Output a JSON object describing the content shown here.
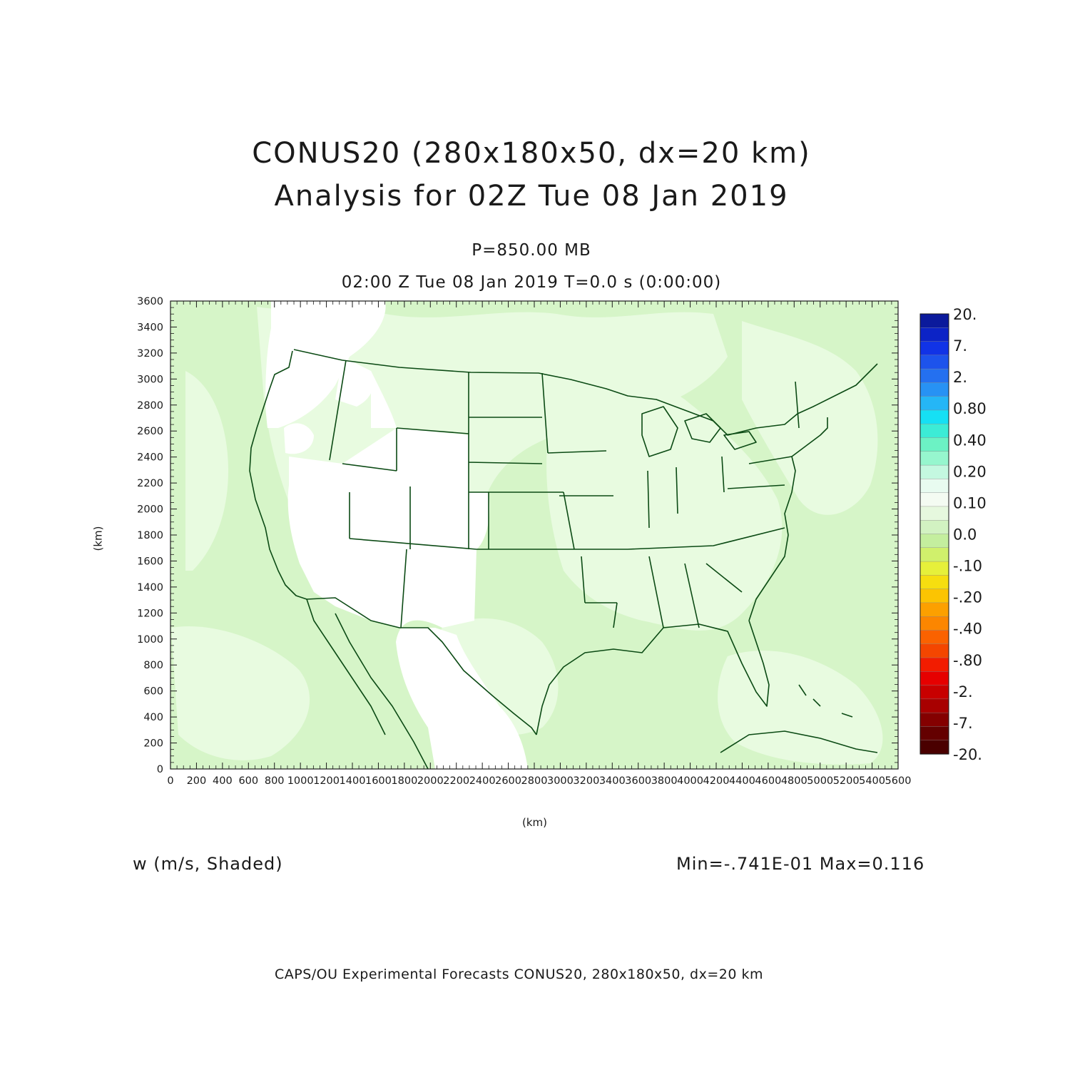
{
  "header": {
    "title_line1": "CONUS20 (280x180x50, dx=20 km)",
    "title_line2": "Analysis for 02Z Tue 08 Jan 2019",
    "level": "P=850.00 MB",
    "valid_time": "02:00 Z Tue 08 Jan 2019    T=0.0 s (0:00:00)"
  },
  "axes": {
    "x_label": "(km)",
    "y_label": "(km)",
    "x_ticks": [
      "0",
      "200",
      "400",
      "600",
      "800",
      "1000",
      "1200",
      "1400",
      "1600",
      "1800",
      "2000",
      "2200",
      "2400",
      "2600",
      "2800",
      "3000",
      "3200",
      "3400",
      "3600",
      "3800",
      "4000",
      "4200",
      "4400",
      "4600",
      "4800",
      "5000",
      "5200",
      "5400",
      "5600"
    ],
    "y_ticks": [
      "0",
      "200",
      "400",
      "600",
      "800",
      "1000",
      "1200",
      "1400",
      "1600",
      "1800",
      "2000",
      "2200",
      "2400",
      "2600",
      "2800",
      "3000",
      "3200",
      "3400",
      "3600"
    ],
    "x_range_km": [
      0,
      5600
    ],
    "y_range_km": [
      0,
      3600
    ]
  },
  "colorbar": {
    "labels_top_to_bottom": [
      "20.",
      "7.",
      "2.",
      "0.80",
      "0.40",
      "0.20",
      "0.10",
      "0.0",
      "-.10",
      "-.20",
      "-.40",
      "-.80",
      "-2.",
      "-7.",
      "-20."
    ],
    "colors_top_to_bottom": [
      "#0b1a9c",
      "#0c23c6",
      "#1133e6",
      "#1d53ec",
      "#2470f0",
      "#2792f4",
      "#25b6f6",
      "#16e0f4",
      "#3cecd6",
      "#6cf2c4",
      "#96f6ce",
      "#c4f8e0",
      "#e8fbf0",
      "#f4fbf2",
      "#e6f8de",
      "#d2f2c2",
      "#c4ee9e",
      "#d0f06c",
      "#e6f03a",
      "#f6de10",
      "#fcc402",
      "#fca000",
      "#fc8600",
      "#fa6200",
      "#f44600",
      "#f21c00",
      "#e60000",
      "#c80000",
      "#a80000",
      "#840000",
      "#640000",
      "#4a0000"
    ]
  },
  "field": {
    "variable": "w (m/s, Shaded)",
    "min_max": "Min=-.741E-01 Max=0.116",
    "colors": {
      "ocean_light_green": "#d6f5c8",
      "pale_green": "#e8fbe0",
      "white_zero": "#ffffff",
      "boundary": "#0b4a14"
    }
  },
  "footer": {
    "text": "CAPS/OU Experimental Forecasts  CONUS20, 280x180x50, dx=20 km"
  }
}
